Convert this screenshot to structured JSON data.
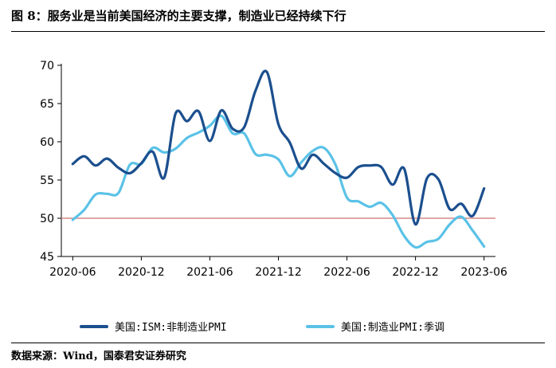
{
  "header": {
    "title": "图 8：服务业是当前美国经济的主要支撑，制造业已经持续下行"
  },
  "footer": {
    "source": "数据来源：Wind，国泰君安证券研究"
  },
  "colors": {
    "series_dark": "#1b4f8e",
    "series_light": "#5bc2e7",
    "reference_line": "#d98787",
    "axis": "#000000"
  },
  "chart_data": {
    "type": "line",
    "title": "",
    "xlabel": "",
    "ylabel": "",
    "ylim": [
      45,
      70
    ],
    "yticks": [
      "45",
      "50",
      "55",
      "60",
      "65",
      "70"
    ],
    "xlim": [
      "2020-05",
      "2023-07"
    ],
    "xticks": [
      "2020-06",
      "2020-12",
      "2021-06",
      "2021-12",
      "2022-06",
      "2022-12",
      "2023-06"
    ],
    "reference_line": 50,
    "legend_position": "bottom",
    "grid": false,
    "x": [
      "2020-06",
      "2020-07",
      "2020-08",
      "2020-09",
      "2020-10",
      "2020-11",
      "2020-12",
      "2021-01",
      "2021-02",
      "2021-03",
      "2021-04",
      "2021-05",
      "2021-06",
      "2021-07",
      "2021-08",
      "2021-09",
      "2021-10",
      "2021-11",
      "2021-12",
      "2022-01",
      "2022-02",
      "2022-03",
      "2022-04",
      "2022-05",
      "2022-06",
      "2022-07",
      "2022-08",
      "2022-09",
      "2022-10",
      "2022-11",
      "2022-12",
      "2023-01",
      "2023-02",
      "2023-03",
      "2023-04",
      "2023-05",
      "2023-06"
    ],
    "series": [
      {
        "name": "美国:ISM:非制造业PMI",
        "values": [
          57.1,
          58.1,
          56.9,
          57.8,
          56.6,
          55.9,
          57.2,
          58.7,
          55.3,
          63.7,
          62.7,
          64.0,
          60.1,
          64.1,
          61.7,
          61.9,
          66.7,
          69.1,
          62.3,
          59.9,
          56.5,
          58.3,
          57.1,
          55.9,
          55.3,
          56.7,
          56.9,
          56.7,
          54.4,
          56.5,
          49.2,
          55.2,
          55.1,
          51.2,
          51.9,
          50.3,
          53.9
        ]
      },
      {
        "name": "美国:制造业PMI:季调",
        "values": [
          49.8,
          51.1,
          53.1,
          53.2,
          53.3,
          57.0,
          57.1,
          59.2,
          58.6,
          59.1,
          60.5,
          61.2,
          62.1,
          63.4,
          61.1,
          61.1,
          58.4,
          58.3,
          57.7,
          55.5,
          57.3,
          58.8,
          59.2,
          57.0,
          52.7,
          52.2,
          51.5,
          52.0,
          50.4,
          47.7,
          46.2,
          46.9,
          47.3,
          49.2,
          50.2,
          48.4,
          46.3
        ]
      }
    ]
  }
}
